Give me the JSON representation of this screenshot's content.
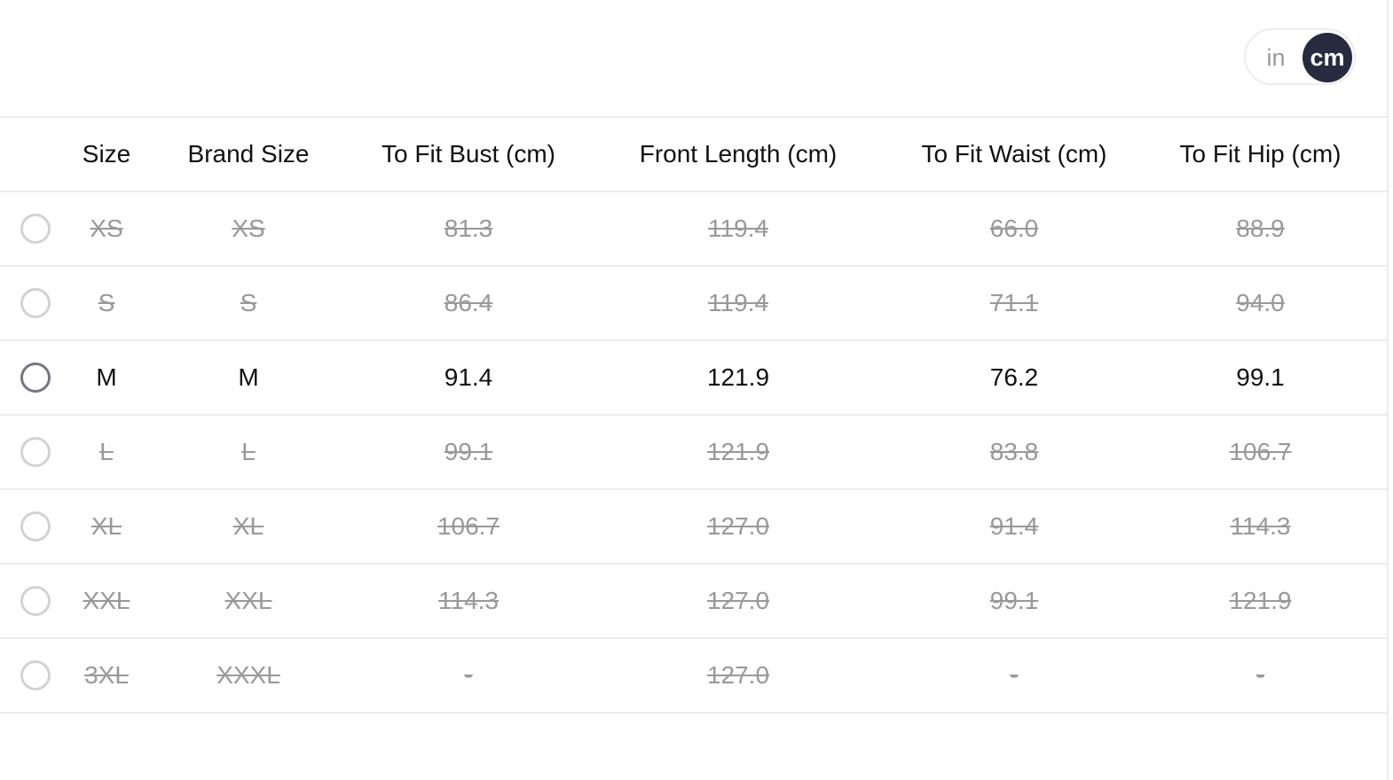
{
  "unit_toggle": {
    "options": [
      "in",
      "cm"
    ],
    "selected": "cm"
  },
  "colors": {
    "accent": "#262b3f",
    "disabled_text": "#999999",
    "divider": "#ececec"
  },
  "table": {
    "headers": [
      "Size",
      "Brand Size",
      "To Fit Bust (cm)",
      "Front Length (cm)",
      "To Fit Waist (cm)",
      "To Fit Hip (cm)"
    ],
    "rows": [
      {
        "available": false,
        "cells": [
          "XS",
          "XS",
          "81.3",
          "119.4",
          "66.0",
          "88.9"
        ]
      },
      {
        "available": false,
        "cells": [
          "S",
          "S",
          "86.4",
          "119.4",
          "71.1",
          "94.0"
        ]
      },
      {
        "available": true,
        "cells": [
          "M",
          "M",
          "91.4",
          "121.9",
          "76.2",
          "99.1"
        ]
      },
      {
        "available": false,
        "cells": [
          "L",
          "L",
          "99.1",
          "121.9",
          "83.8",
          "106.7"
        ]
      },
      {
        "available": false,
        "cells": [
          "XL",
          "XL",
          "106.7",
          "127.0",
          "91.4",
          "114.3"
        ]
      },
      {
        "available": false,
        "cells": [
          "XXL",
          "XXL",
          "114.3",
          "127.0",
          "99.1",
          "121.9"
        ]
      },
      {
        "available": false,
        "cells": [
          "3XL",
          "XXXL",
          "-",
          "127.0",
          "-",
          "-"
        ]
      }
    ]
  }
}
